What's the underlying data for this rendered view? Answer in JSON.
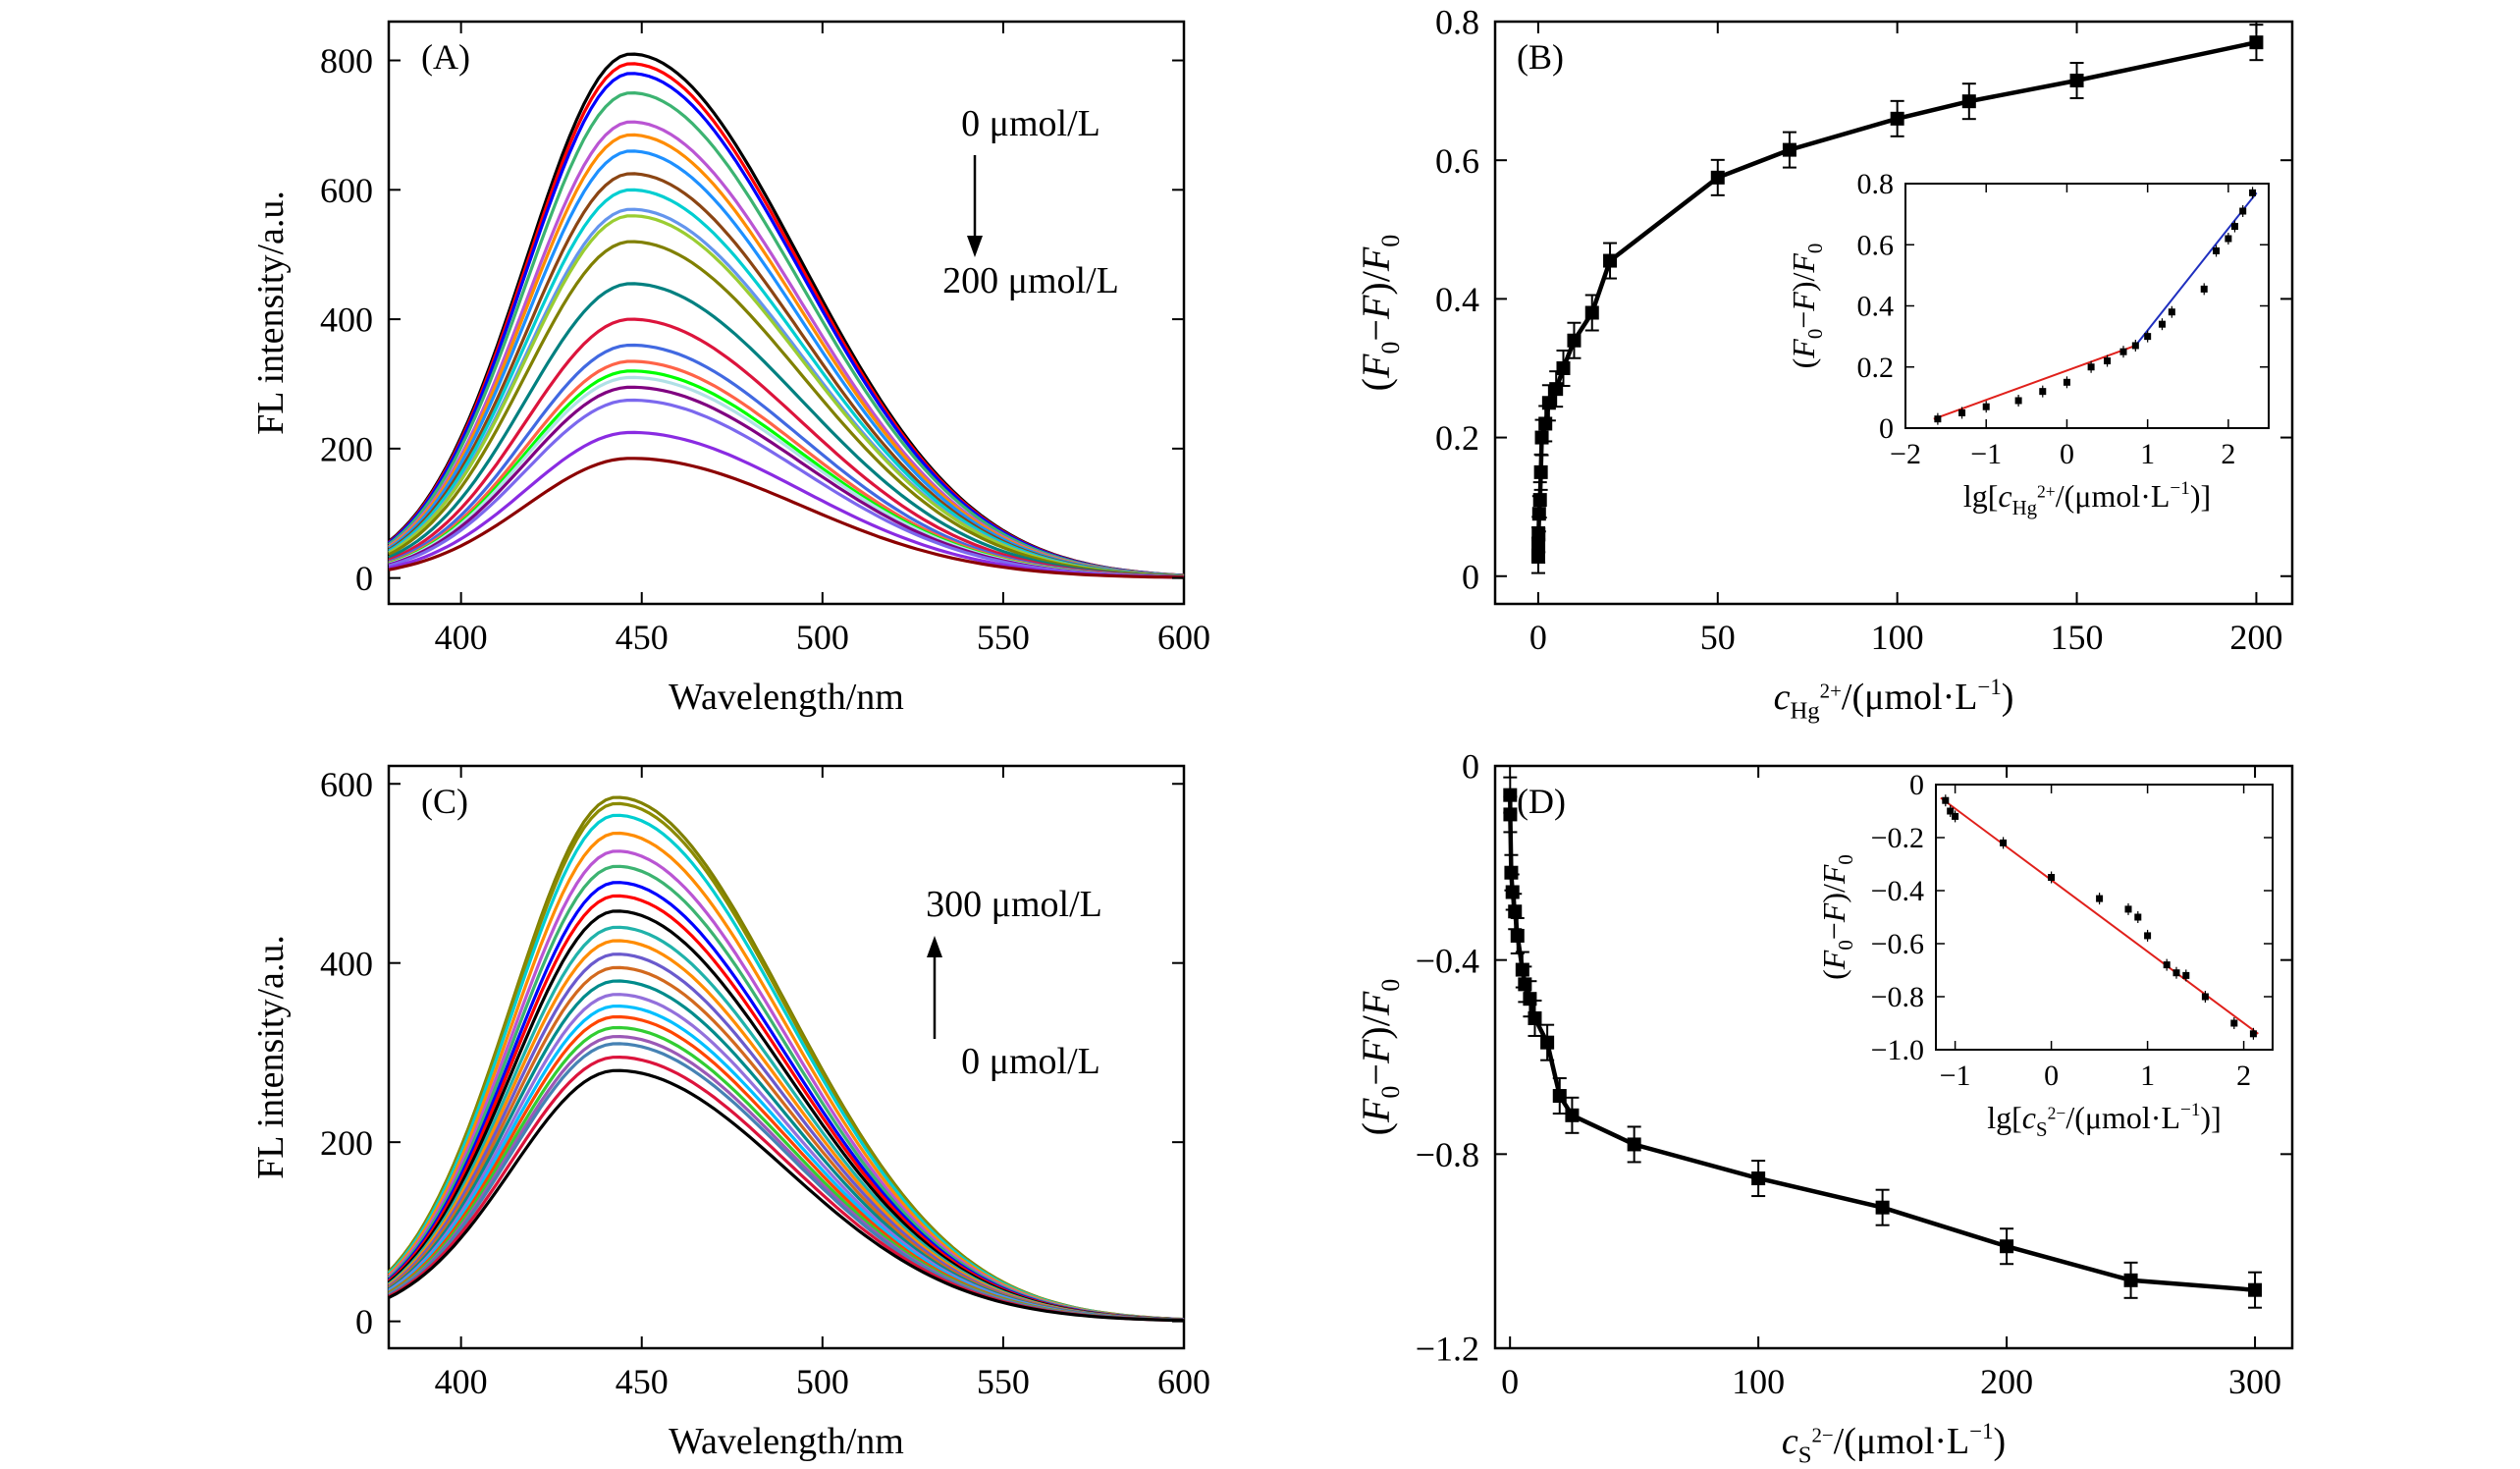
{
  "figure": {
    "colors": {
      "axis": "#000000",
      "fit_low": "#e0201b",
      "fit_high": "#1f2fbf",
      "marker": "#000000"
    }
  },
  "chart_data": [
    {
      "id": "A",
      "type": "line",
      "panel_label": "(A)",
      "xlabel": "Wavelength/nm",
      "ylabel": "FL intensity/a.u.",
      "xlim": [
        380,
        600
      ],
      "ylim": [
        -40,
        860
      ],
      "xticks": [
        400,
        450,
        500,
        550,
        600
      ],
      "yticks": [
        0,
        200,
        400,
        600,
        800
      ],
      "annotation_top": "0 μmol/L",
      "annotation_bottom": "200 μmol/L",
      "arrow": "down",
      "peak_x": 447,
      "curve_colors": [
        "#000000",
        "#ff0000",
        "#0000ff",
        "#3cb371",
        "#ba55d3",
        "#ff8c00",
        "#1e90ff",
        "#8b4513",
        "#00ced1",
        "#6495ed",
        "#9acd32",
        "#808000",
        "#008080",
        "#dc143c",
        "#4169e1",
        "#ff6347",
        "#00ff00",
        "#b0e0e6",
        "#800080",
        "#7b68ee",
        "#8a2be2",
        "#8b0000"
      ],
      "peaks": [
        810,
        795,
        780,
        750,
        705,
        685,
        660,
        625,
        600,
        570,
        560,
        520,
        455,
        400,
        360,
        335,
        320,
        310,
        295,
        275,
        225,
        185
      ]
    },
    {
      "id": "B",
      "type": "scatter",
      "panel_label": "(B)",
      "xlabel": "c",
      "xlabel_sub": "Hg",
      "xlabel_sup": "2+",
      "xlabel_unit": "/(μmol·L",
      "xlabel_unit_sup": "−1",
      "xlabel_end": ")",
      "ylabel": "(F0−F)/F0",
      "xlim": [
        -12,
        210
      ],
      "ylim": [
        -0.04,
        0.8
      ],
      "xticks": [
        0,
        50,
        100,
        150,
        200
      ],
      "yticks": [
        0,
        0.2,
        0.4,
        0.6,
        0.8
      ],
      "ytick_labels": [
        "0",
        "0.2",
        "0.4",
        "0.6",
        "0.8"
      ],
      "x": [
        0.025,
        0.05,
        0.1,
        0.25,
        0.5,
        0.75,
        1,
        2,
        3,
        5,
        7,
        10,
        15,
        20,
        50,
        70,
        100,
        120,
        150,
        200
      ],
      "y": [
        0.03,
        0.045,
        0.06,
        0.09,
        0.11,
        0.15,
        0.2,
        0.22,
        0.25,
        0.27,
        0.3,
        0.34,
        0.38,
        0.455,
        0.575,
        0.615,
        0.66,
        0.685,
        0.715,
        0.77
      ],
      "inset": {
        "type": "scatter",
        "xlabel": "lg[c",
        "xlabel_sub": "Hg",
        "xlabel_sup": "2+",
        "xlabel_unit": "/(μmol·L",
        "xlabel_unit_sup": "−1",
        "xlabel_end": ")]",
        "ylabel": "(F0−F)/F0",
        "xlim": [
          -2,
          2.5
        ],
        "ylim": [
          0,
          0.8
        ],
        "xticks": [
          -2,
          -1,
          0,
          1,
          2
        ],
        "xtick_labels": [
          "−2",
          "−1",
          "0",
          "1",
          "2"
        ],
        "yticks": [
          0,
          0.2,
          0.4,
          0.6,
          0.8
        ],
        "ytick_labels": [
          "0",
          "0.2",
          "0.4",
          "0.6",
          "0.8"
        ],
        "x": [
          -1.6,
          -1.3,
          -1.0,
          -0.6,
          -0.3,
          0,
          0.3,
          0.5,
          0.7,
          0.85,
          1.0,
          1.18,
          1.3,
          1.7,
          1.85,
          2.0,
          2.08,
          2.18,
          2.3
        ],
        "y": [
          0.03,
          0.05,
          0.07,
          0.09,
          0.12,
          0.15,
          0.2,
          0.22,
          0.25,
          0.27,
          0.3,
          0.34,
          0.38,
          0.455,
          0.58,
          0.62,
          0.66,
          0.71,
          0.77
        ],
        "fit_low": {
          "x": [
            -1.65,
            0.85
          ],
          "y": [
            0.03,
            0.27
          ]
        },
        "fit_high": {
          "x": [
            0.85,
            2.35
          ],
          "y": [
            0.27,
            0.77
          ]
        }
      }
    },
    {
      "id": "C",
      "type": "line",
      "panel_label": "(C)",
      "xlabel": "Wavelength/nm",
      "ylabel": "FL intensity/a.u.",
      "xlim": [
        380,
        600
      ],
      "ylim": [
        -30,
        620
      ],
      "xticks": [
        400,
        450,
        500,
        550,
        600
      ],
      "yticks": [
        0,
        200,
        400,
        600
      ],
      "annotation_top": "300 μmol/L",
      "annotation_bottom": "0 μmol/L",
      "arrow": "up",
      "peak_x": 443,
      "curve_colors": [
        "#808000",
        "#8b8b00",
        "#00ced1",
        "#ff8c00",
        "#ba55d3",
        "#3cb371",
        "#0000ff",
        "#ff0000",
        "#000000",
        "#20b2aa",
        "#ff8c00",
        "#6a5acd",
        "#d2691e",
        "#008b8b",
        "#9370db",
        "#00bfff",
        "#ff4500",
        "#32cd32",
        "#9b59b6",
        "#4682b4",
        "#dc143c",
        "#000000"
      ],
      "peaks": [
        585,
        578,
        565,
        545,
        525,
        508,
        490,
        475,
        458,
        440,
        425,
        410,
        395,
        380,
        365,
        352,
        340,
        328,
        318,
        310,
        295,
        280
      ]
    },
    {
      "id": "D",
      "type": "scatter",
      "panel_label": "(D)",
      "xlabel": "c",
      "xlabel_sub": "S",
      "xlabel_sup": "2−",
      "xlabel_unit": "/(μmol·L",
      "xlabel_unit_sup": "−1",
      "xlabel_end": ")",
      "ylabel": "(F0−F)/F0",
      "xlim": [
        -6,
        315
      ],
      "ylim": [
        -1.2,
        0
      ],
      "xticks": [
        0,
        100,
        200,
        300
      ],
      "yticks": [
        -1.2,
        -0.8,
        -0.4,
        0
      ],
      "ytick_labels": [
        "−1.2",
        "−0.8",
        "−0.4",
        "0"
      ],
      "x": [
        0.05,
        0.1,
        0.5,
        1,
        2,
        3,
        5,
        6,
        8,
        10,
        15,
        20,
        25,
        50,
        100,
        150,
        200,
        250,
        300
      ],
      "y": [
        -0.06,
        -0.1,
        -0.22,
        -0.26,
        -0.3,
        -0.35,
        -0.42,
        -0.45,
        -0.48,
        -0.52,
        -0.57,
        -0.68,
        -0.72,
        -0.78,
        -0.85,
        -0.91,
        -0.99,
        -1.06,
        -1.08
      ],
      "inset": {
        "type": "scatter",
        "xlabel": "lg[c",
        "xlabel_sub": "S",
        "xlabel_sup": "2−",
        "xlabel_unit": "/(μmol·L",
        "xlabel_unit_sup": "−1",
        "xlabel_end": ")]",
        "ylabel": "(F0−F)/F0",
        "xlim": [
          -1.2,
          2.3
        ],
        "ylim": [
          -1.0,
          0
        ],
        "xticks": [
          -1,
          0,
          1,
          2
        ],
        "xtick_labels": [
          "−1",
          "0",
          "1",
          "2"
        ],
        "yticks": [
          -1.0,
          -0.8,
          -0.6,
          -0.4,
          -0.2,
          0
        ],
        "ytick_labels": [
          "−1.0",
          "−0.8",
          "−0.6",
          "−0.4",
          "−0.2",
          "0"
        ],
        "x": [
          -1.1,
          -1.05,
          -1.0,
          -0.5,
          0,
          0.5,
          0.8,
          0.9,
          1.0,
          1.2,
          1.3,
          1.4,
          1.6,
          1.9,
          2.1
        ],
        "y": [
          -0.06,
          -0.1,
          -0.12,
          -0.22,
          -0.35,
          -0.43,
          -0.47,
          -0.5,
          -0.57,
          -0.68,
          -0.71,
          -0.72,
          -0.8,
          -0.9,
          -0.94
        ],
        "fit": {
          "x": [
            -1.15,
            2.15
          ],
          "y": [
            -0.05,
            -0.94
          ]
        }
      }
    }
  ]
}
